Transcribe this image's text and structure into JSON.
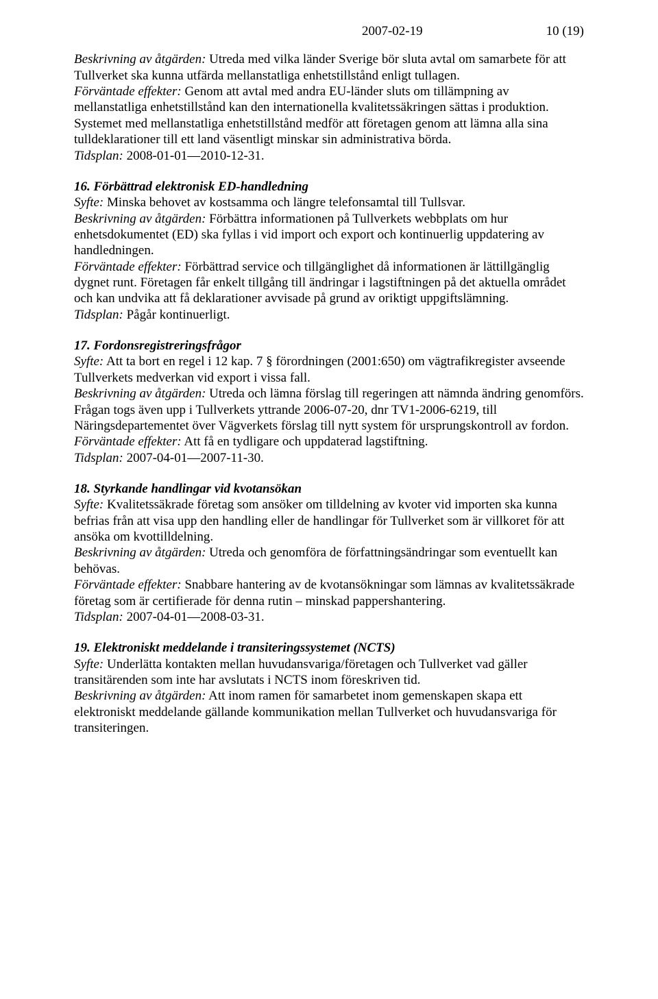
{
  "header": {
    "date": "2007-02-19",
    "pageinfo": "10 (19)"
  },
  "lead": {
    "beskrivning_label": "Beskrivning av åtgärden:",
    "beskrivning_text": " Utreda med vilka länder Sverige bör sluta avtal om samarbete för att Tullverket ska kunna utfärda mellanstatliga enhetstillstånd enligt tullagen.",
    "forvantade_label": "Förväntade effekter:",
    "forvantade_text": " Genom att avtal med andra EU-länder sluts om tillämpning av mellanstatliga enhetstillstånd kan den internationella kvalitetssäkringen sättas i produktion. Systemet med mellanstatliga enhetstillstånd medför att företagen genom att lämna alla sina tulldeklarationer till ett land väsentligt minskar sin administrativa börda.",
    "tidsplan_label": "Tidsplan:",
    "tidsplan_text": " 2008-01-01—2010-12-31."
  },
  "s16": {
    "heading": "16. Förbättrad elektronisk ED-handledning",
    "syfte_label": "Syfte:",
    "syfte_text": " Minska behovet av kostsamma och längre telefonsamtal till Tullsvar.",
    "beskrivning_label": "Beskrivning av åtgärden:",
    "beskrivning_text": " Förbättra informationen på Tullverkets webbplats om hur enhetsdokumentet (ED) ska fyllas i vid import och export och kontinuerlig uppdatering av handledningen.",
    "forvantade_label": "Förväntade effekter:",
    "forvantade_text": " Förbättrad service och tillgänglighet då informationen är lättillgänglig dygnet runt. Företagen får enkelt tillgång till ändringar i lagstiftningen på det aktuella området och kan undvika att få deklarationer avvisade på grund av oriktigt uppgiftslämning.",
    "tidsplan_label": "Tidsplan:",
    "tidsplan_text": " Pågår kontinuerligt."
  },
  "s17": {
    "heading": "17. Fordonsregistreringsfrågor",
    "syfte_label": "Syfte:",
    "syfte_text": " Att ta bort en regel i 12 kap. 7 § förordningen (2001:650) om vägtrafikregister avseende Tullverkets medverkan vid export i vissa fall.",
    "beskrivning_label": "Beskrivning av åtgärden:",
    "beskrivning_text": " Utreda och lämna förslag till regeringen att nämnda ändring genomförs. Frågan togs även upp i Tullverkets yttrande 2006-07-20, dnr TV1-2006-6219, till Näringsdepartementet över Vägverkets förslag till nytt system för ursprungskontroll av fordon.",
    "forvantade_label": "Förväntade effekter:",
    "forvantade_text": " Att få en tydligare och uppdaterad lagstiftning.",
    "tidsplan_label": "Tidsplan:",
    "tidsplan_text": "  2007-04-01—2007-11-30."
  },
  "s18": {
    "heading": "18. Styrkande handlingar vid kvotansökan",
    "syfte_label": "Syfte:",
    "syfte_text": " Kvalitetssäkrade företag som ansöker om tilldelning av kvoter vid importen ska kunna befrias från att visa upp den handling eller de handlingar för Tullverket som är villkoret för att ansöka om kvottilldelning.",
    "beskrivning_label": "Beskrivning av åtgärden:",
    "beskrivning_text": " Utreda och genomföra de författningsändringar som eventuellt kan behövas.",
    "forvantade_label": "Förväntade effekter:",
    "forvantade_text": " Snabbare hantering av de kvotansökningar som lämnas av kvalitetssäkrade företag som är certifierade för denna rutin – minskad pappershantering.",
    "tidsplan_label": "Tidsplan:",
    "tidsplan_text": " 2007-04-01—2008-03-31."
  },
  "s19": {
    "heading": "19. Elektroniskt meddelande i transiteringssystemet (NCTS)",
    "syfte_label": "Syfte:",
    "syfte_text": " Underlätta kontakten mellan huvudansvariga/företagen och Tullverket vad gäller transitärenden som inte har avslutats i NCTS inom föreskriven tid.",
    "beskrivning_label": "Beskrivning av åtgärden:",
    "beskrivning_text": " Att inom ramen för samarbetet inom gemenskapen skapa ett elektroniskt meddelande gällande kommunikation mellan Tullverket och huvudansvariga för transiteringen."
  }
}
